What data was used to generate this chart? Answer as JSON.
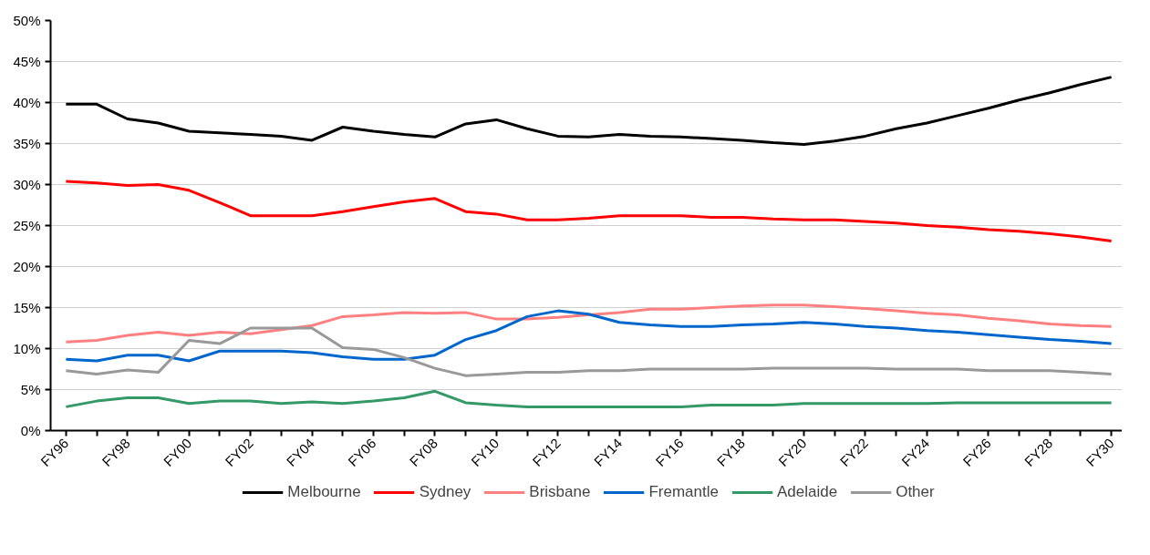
{
  "chart_data": {
    "type": "line",
    "categories": [
      "FY96",
      null,
      "FY98",
      null,
      "FY00",
      null,
      "FY02",
      null,
      "FY04",
      null,
      "FY06",
      null,
      "FY08",
      null,
      "FY10",
      null,
      "FY12",
      null,
      "FY14",
      null,
      "FY16",
      null,
      "FY18",
      null,
      "FY20",
      null,
      "FY22",
      null,
      "FY24",
      null,
      "FY26",
      null,
      "FY28",
      null,
      "FY30"
    ],
    "series": [
      {
        "name": "Melbourne",
        "color": "#000000",
        "values": [
          39.8,
          39.8,
          38.0,
          37.5,
          36.5,
          36.3,
          36.1,
          35.9,
          35.4,
          37.0,
          36.5,
          36.1,
          35.8,
          37.4,
          37.9,
          36.8,
          35.9,
          35.8,
          36.1,
          35.9,
          35.8,
          35.6,
          35.4,
          35.1,
          34.9,
          35.3,
          35.9,
          36.8,
          37.5,
          38.4,
          39.3,
          40.3,
          41.2,
          42.2,
          43.1
        ]
      },
      {
        "name": "Sydney",
        "color": "#ff0000",
        "values": [
          30.4,
          30.2,
          29.9,
          30.0,
          29.3,
          27.8,
          26.2,
          26.2,
          26.2,
          26.7,
          27.3,
          27.9,
          28.3,
          26.7,
          26.4,
          25.7,
          25.7,
          25.9,
          26.2,
          26.2,
          26.2,
          26.0,
          26.0,
          25.8,
          25.7,
          25.7,
          25.5,
          25.3,
          25.0,
          24.8,
          24.5,
          24.3,
          24.0,
          23.6,
          23.1
        ]
      },
      {
        "name": "Brisbane",
        "color": "#ff8080",
        "values": [
          10.8,
          11.0,
          11.6,
          12.0,
          11.6,
          12.0,
          11.8,
          12.3,
          12.8,
          13.9,
          14.1,
          14.4,
          14.3,
          14.4,
          13.6,
          13.6,
          13.8,
          14.1,
          14.4,
          14.8,
          14.8,
          15.0,
          15.2,
          15.3,
          15.3,
          15.1,
          14.9,
          14.6,
          14.3,
          14.1,
          13.7,
          13.4,
          13.0,
          12.8,
          12.7
        ]
      },
      {
        "name": "Fremantle",
        "color": "#0066cc",
        "values": [
          8.7,
          8.5,
          9.2,
          9.2,
          8.5,
          9.7,
          9.7,
          9.7,
          9.5,
          9.0,
          8.7,
          8.7,
          9.2,
          11.1,
          12.2,
          13.9,
          14.6,
          14.2,
          13.2,
          12.9,
          12.7,
          12.7,
          12.9,
          13.0,
          13.2,
          13.0,
          12.7,
          12.5,
          12.2,
          12.0,
          11.7,
          11.4,
          11.1,
          10.9,
          10.6
        ]
      },
      {
        "name": "Adelaide",
        "color": "#339966",
        "values": [
          2.9,
          3.6,
          4.0,
          4.0,
          3.3,
          3.6,
          3.6,
          3.3,
          3.5,
          3.3,
          3.6,
          4.0,
          4.8,
          3.4,
          3.1,
          2.9,
          2.9,
          2.9,
          2.9,
          2.9,
          2.9,
          3.1,
          3.1,
          3.1,
          3.3,
          3.3,
          3.3,
          3.3,
          3.3,
          3.4,
          3.4,
          3.4,
          3.4,
          3.4,
          3.4
        ]
      },
      {
        "name": "Other",
        "color": "#999999",
        "values": [
          7.3,
          6.9,
          7.4,
          7.1,
          11.0,
          10.6,
          12.5,
          12.5,
          12.5,
          10.1,
          9.9,
          8.9,
          7.6,
          6.7,
          6.9,
          7.1,
          7.1,
          7.3,
          7.3,
          7.5,
          7.5,
          7.5,
          7.5,
          7.6,
          7.6,
          7.6,
          7.6,
          7.5,
          7.5,
          7.5,
          7.3,
          7.3,
          7.3,
          7.1,
          6.9
        ]
      }
    ],
    "ylim": [
      0,
      50
    ],
    "yticks": [
      {
        "value": 0,
        "label": "0%"
      },
      {
        "value": 5,
        "label": "5%"
      },
      {
        "value": 10,
        "label": "10%"
      },
      {
        "value": 15,
        "label": "15%"
      },
      {
        "value": 20,
        "label": "20%"
      },
      {
        "value": 25,
        "label": "25%"
      },
      {
        "value": 30,
        "label": "30%"
      },
      {
        "value": 35,
        "label": "35%"
      },
      {
        "value": 40,
        "label": "40%"
      },
      {
        "value": 45,
        "label": "45%"
      },
      {
        "value": 50,
        "label": "50%"
      }
    ],
    "grid": "y",
    "legend": "bottom",
    "line_style": "solid"
  }
}
